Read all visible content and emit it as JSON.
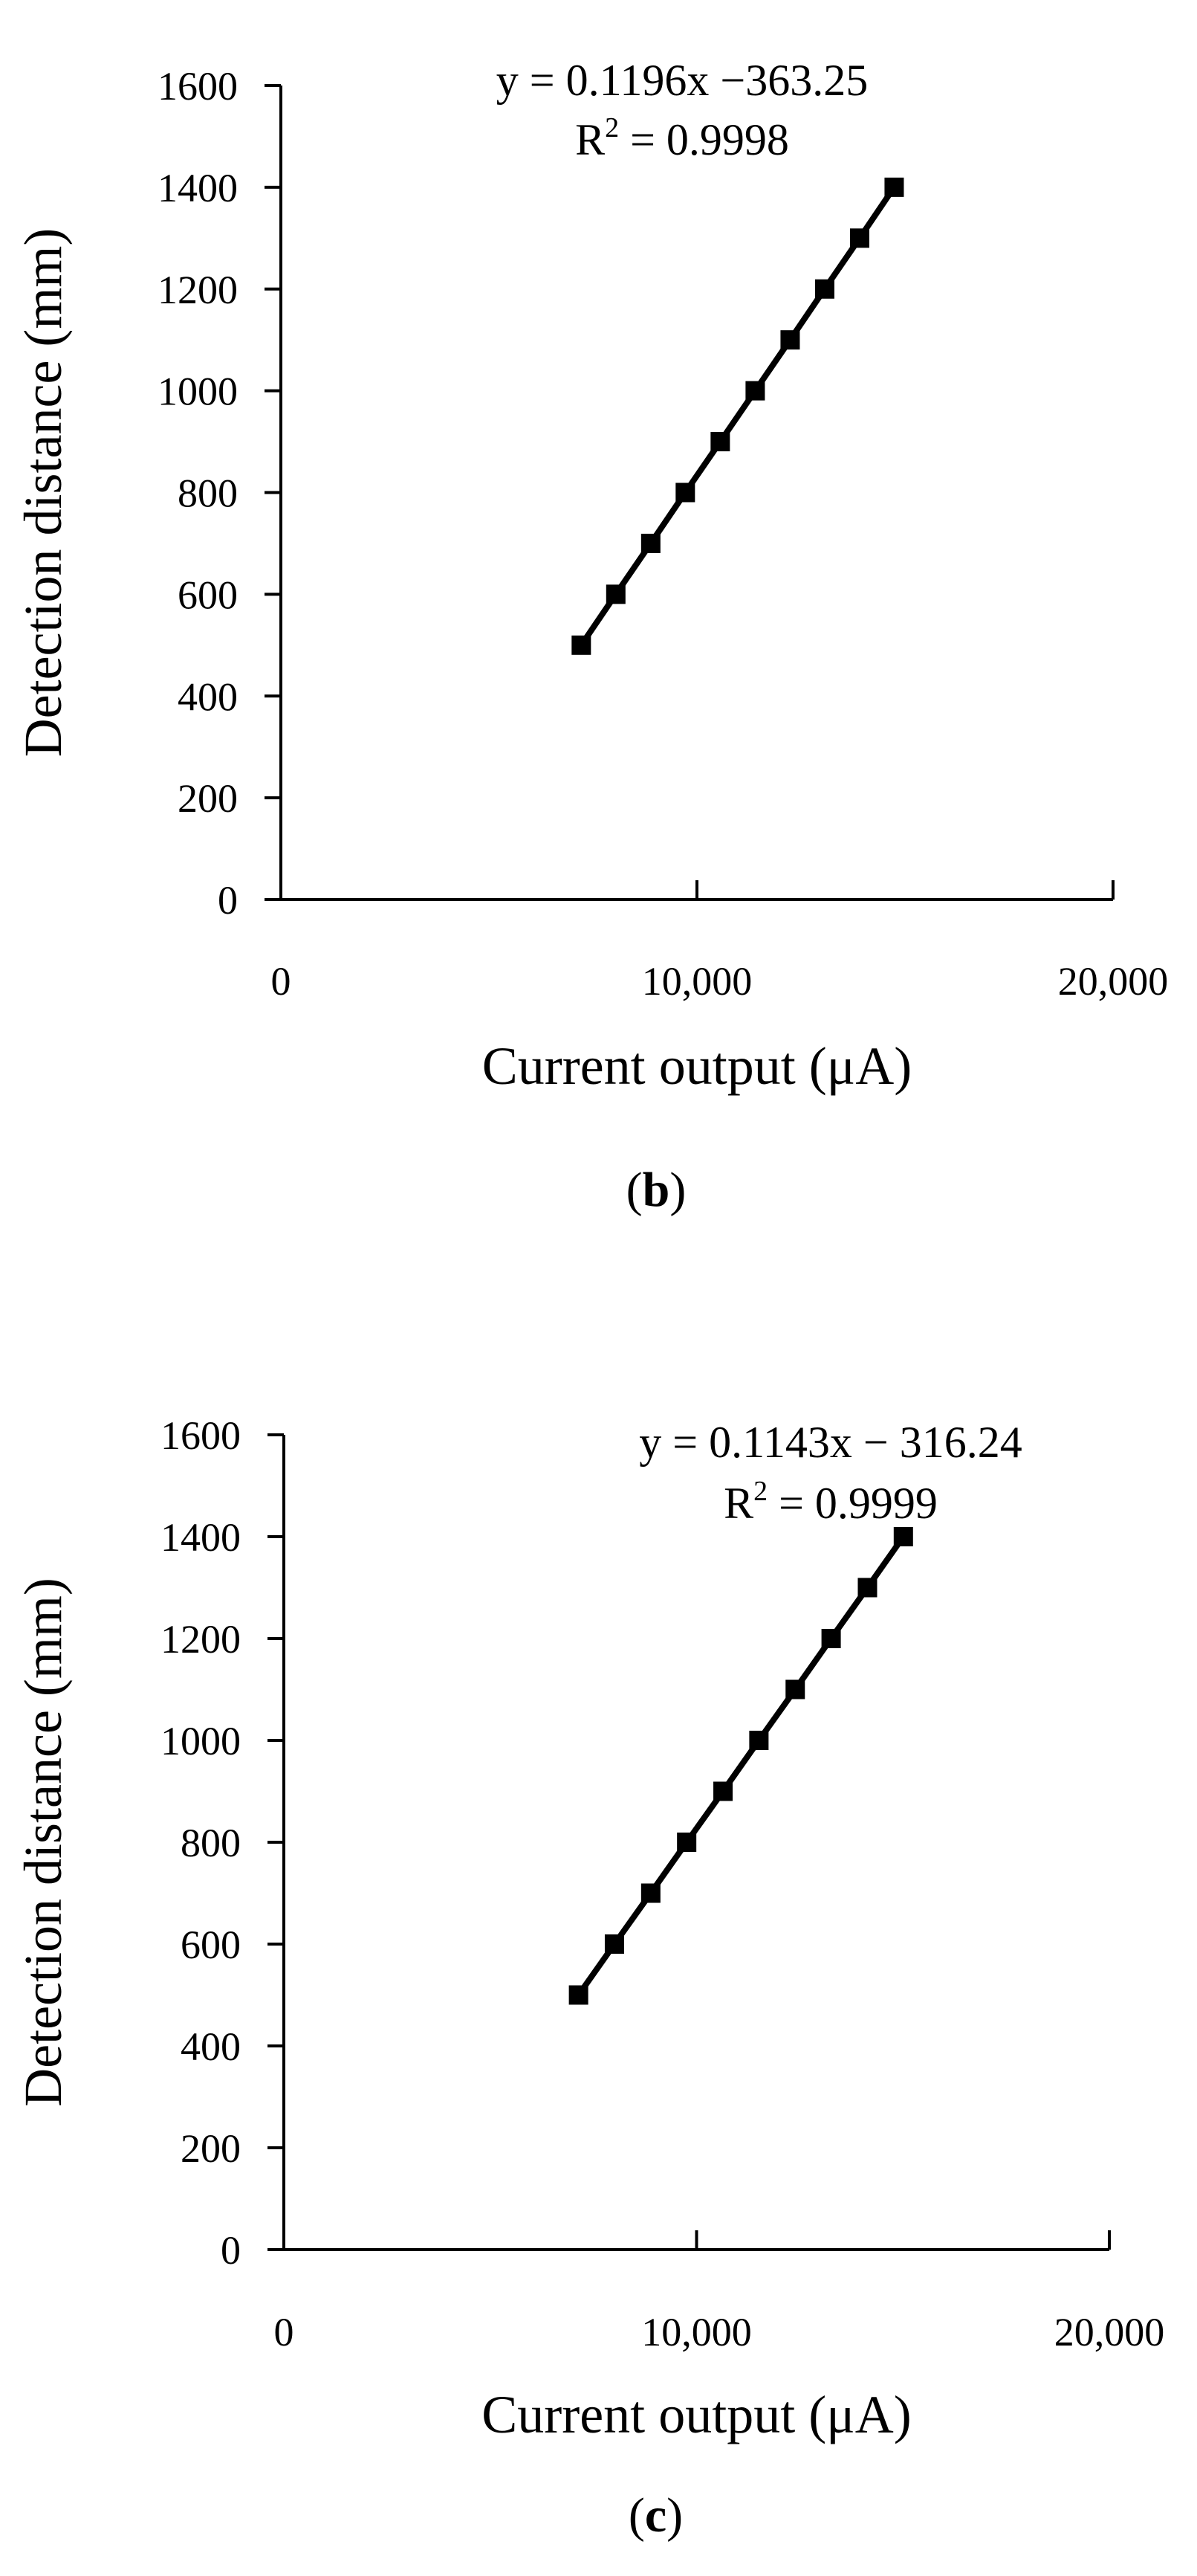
{
  "colors": {
    "axis": "#000000",
    "line": "#000000",
    "marker": "#000000",
    "background": "#ffffff"
  },
  "chart_data": [
    {
      "id": "b",
      "type": "line",
      "panel_label": {
        "open": "(",
        "letter": "b",
        "close": ")"
      },
      "xlabel": "Current output (μA)",
      "ylabel": "Detection distance (mm)",
      "xlim": [
        0,
        20000
      ],
      "ylim": [
        0,
        1600
      ],
      "x_ticks": [
        0,
        10000,
        20000
      ],
      "x_tick_labels": [
        "0",
        "10,000",
        "20,000"
      ],
      "y_ticks": [
        0,
        200,
        400,
        600,
        800,
        1000,
        1200,
        1400,
        1600
      ],
      "y_tick_labels": [
        "0",
        "200",
        "400",
        "600",
        "800",
        "1000",
        "1200",
        "1400",
        "1600"
      ],
      "grid": false,
      "marker": "square",
      "equation": "y = 0.1196x −363.25",
      "r_squared": {
        "prefix": "R",
        "sup": "2",
        "suffix": " = 0.9998"
      },
      "series": [
        {
          "x": [
            7220,
            8050,
            8890,
            9720,
            10560,
            11400,
            12240,
            13070,
            13910,
            14740
          ],
          "y": [
            500,
            600,
            700,
            800,
            900,
            1000,
            1100,
            1200,
            1300,
            1400
          ]
        }
      ]
    },
    {
      "id": "c",
      "type": "line",
      "panel_label": {
        "open": "(",
        "letter": "c",
        "close": ")"
      },
      "xlabel": "Current output (μA)",
      "ylabel": "Detection distance (mm)",
      "xlim": [
        0,
        20000
      ],
      "ylim": [
        0,
        1600
      ],
      "x_ticks": [
        0,
        10000,
        20000
      ],
      "x_tick_labels": [
        "0",
        "10,000",
        "20,000"
      ],
      "y_ticks": [
        0,
        200,
        400,
        600,
        800,
        1000,
        1200,
        1400,
        1600
      ],
      "y_tick_labels": [
        "0",
        "200",
        "400",
        "600",
        "800",
        "1000",
        "1200",
        "1400",
        "1600"
      ],
      "grid": false,
      "marker": "square",
      "equation": "y = 0.1143x − 316.24",
      "r_squared": {
        "prefix": "R",
        "sup": "2",
        "suffix": " = 0.9999"
      },
      "series": [
        {
          "x": [
            7140,
            8010,
            8890,
            9760,
            10640,
            11510,
            12390,
            13260,
            14140,
            15010
          ],
          "y": [
            500,
            600,
            700,
            800,
            900,
            1000,
            1100,
            1200,
            1300,
            1400
          ]
        }
      ]
    }
  ]
}
